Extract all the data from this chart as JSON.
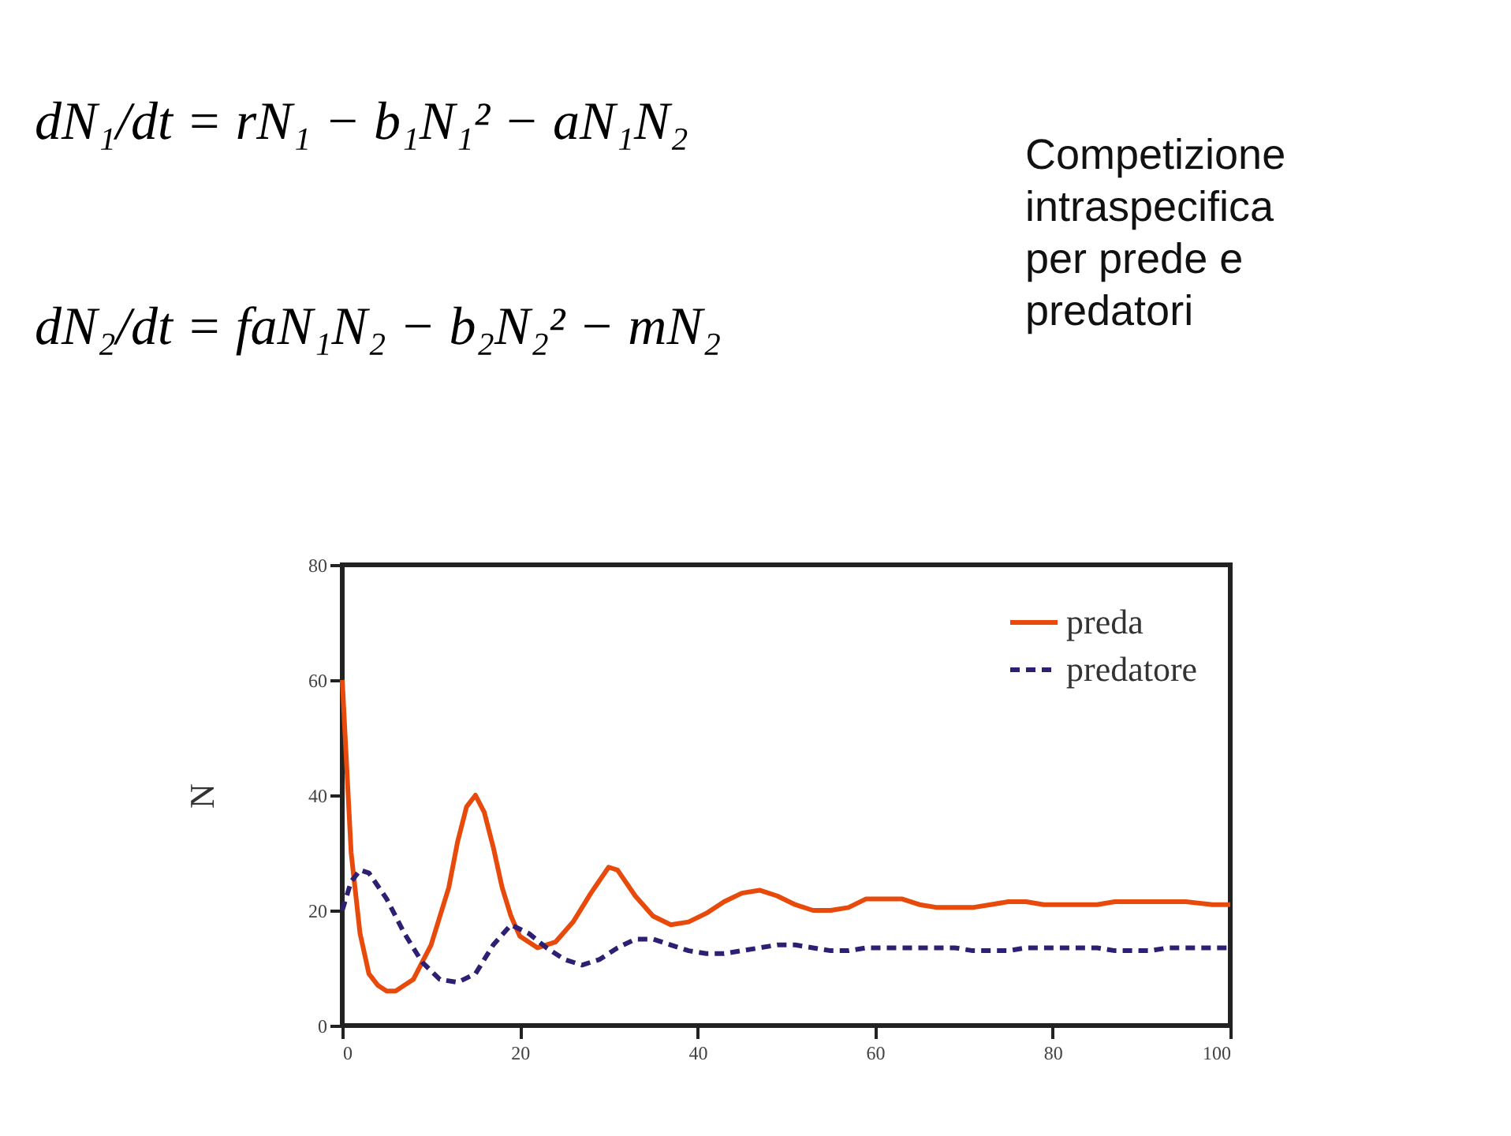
{
  "chart_data": {
    "type": "line",
    "ylabel": "N",
    "annotations": [
      "dN₁/dt = rN₁ − b₁N₁² − aN₁N₂",
      "dN₂/dt = faN₁N₂ − b₂N₂² − mN₂",
      "Competizione intraspecifica per prede e predatori"
    ],
    "xlim": [
      0,
      100
    ],
    "xticks": [
      0,
      20,
      40,
      60,
      80,
      100
    ],
    "ylim": [
      0,
      80
    ],
    "yticks": [
      0,
      20,
      40,
      60,
      80
    ],
    "grid": false,
    "legend": "top right",
    "series": [
      {
        "name": "preda",
        "color": "#e84a0c",
        "line_style": "solid",
        "x": [
          0,
          1,
          2,
          3,
          4,
          5,
          6,
          8,
          10,
          12,
          13,
          14,
          15,
          16,
          17,
          18,
          19,
          20,
          22,
          24,
          26,
          28,
          30,
          31,
          33,
          35,
          37,
          39,
          41,
          43,
          45,
          47,
          49,
          51,
          53,
          55,
          57,
          59,
          61,
          63,
          65,
          67,
          69,
          71,
          73,
          75,
          77,
          79,
          81,
          83,
          85,
          87,
          89,
          92,
          95,
          98,
          100
        ],
        "values": [
          60,
          30,
          16,
          9,
          7,
          6,
          6,
          8,
          14,
          24,
          32,
          38,
          40,
          37,
          31,
          24,
          19,
          15.5,
          13.5,
          14.5,
          18,
          23,
          27.5,
          27,
          22.5,
          19,
          17.5,
          18,
          19.5,
          21.5,
          23,
          23.5,
          22.5,
          21,
          20,
          20,
          20.5,
          22,
          22,
          22,
          21,
          20.5,
          20.5,
          20.5,
          21,
          21.5,
          21.5,
          21,
          21,
          21,
          21,
          21.5,
          21.5,
          21.5,
          21.5,
          21,
          21
        ]
      },
      {
        "name": "predatore",
        "color": "#2e1f73",
        "line_style": "dashed",
        "x": [
          0,
          1,
          2,
          3,
          5,
          7,
          9,
          11,
          13,
          15,
          17,
          19,
          21,
          23,
          25,
          27,
          29,
          31,
          33,
          35,
          37,
          39,
          41,
          43,
          45,
          47,
          49,
          51,
          53,
          55,
          57,
          59,
          61,
          63,
          65,
          67,
          69,
          71,
          73,
          75,
          77,
          79,
          81,
          83,
          85,
          87,
          89,
          91,
          93,
          95,
          97,
          100
        ],
        "values": [
          20,
          25,
          27,
          26.5,
          22,
          16,
          11,
          8,
          7.5,
          9,
          14,
          17.5,
          16,
          13.5,
          11.5,
          10.5,
          11.5,
          13.5,
          15,
          15,
          14,
          13,
          12.5,
          12.5,
          13,
          13.5,
          14,
          14,
          13.5,
          13,
          13,
          13.5,
          13.5,
          13.5,
          13.5,
          13.5,
          13.5,
          13,
          13,
          13,
          13.5,
          13.5,
          13.5,
          13.5,
          13.5,
          13,
          13,
          13,
          13.5,
          13.5,
          13.5,
          13.5
        ]
      }
    ]
  }
}
